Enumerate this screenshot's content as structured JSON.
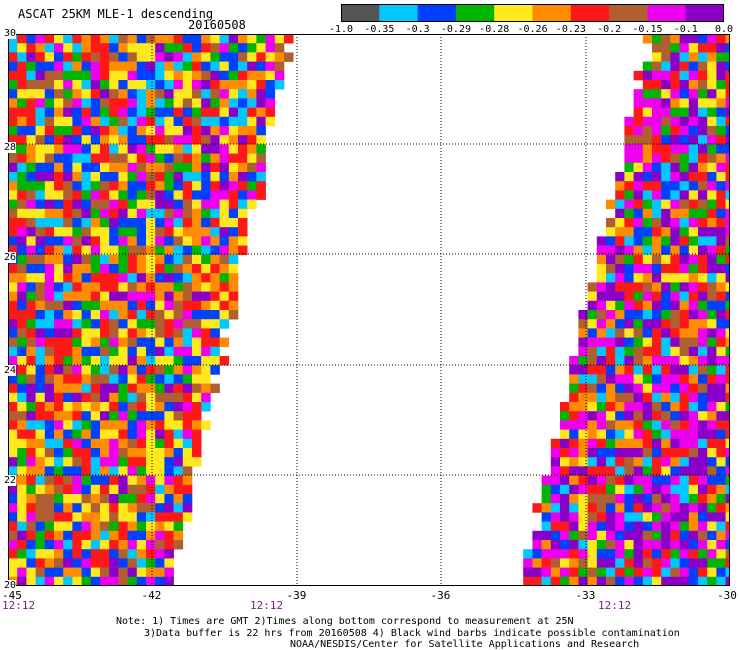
{
  "title": "ASCAT 25KM MLE-1 descending",
  "date": "20160508",
  "colorbar": {
    "labels": [
      "-1.0",
      "-0.35",
      "-0.3",
      "-0.29",
      "-0.28",
      "-0.26",
      "-0.23",
      "-0.2",
      "-0.15",
      "-0.1",
      "0.0"
    ],
    "colors": [
      "#555555",
      "#00c8ff",
      "#0040ff",
      "#00b400",
      "#ffe81c",
      "#ff8c00",
      "#ff1818",
      "#b06030",
      "#ee00ee",
      "#8a00c8"
    ]
  },
  "map": {
    "lat_labels": [
      "30",
      "28",
      "26",
      "24",
      "22",
      "20"
    ],
    "lon_labels": [
      "-45",
      "-42",
      "-39",
      "-36",
      "-33",
      "-30"
    ],
    "time_labels": [
      "12:12",
      "12:12",
      "12:12"
    ],
    "lat_range": [
      20,
      30
    ],
    "lon_range": [
      -45,
      -30
    ]
  },
  "notes": {
    "line1": "Note: 1) Times are GMT 2)Times along bottom correspond to measurement at 25N",
    "line2": "3)Data buffer is 22 hrs from 20160508 4) Black wind barbs indicate possible contamination",
    "line3": "NOAA/NESDIS/Center for Satellite Applications and Research"
  }
}
